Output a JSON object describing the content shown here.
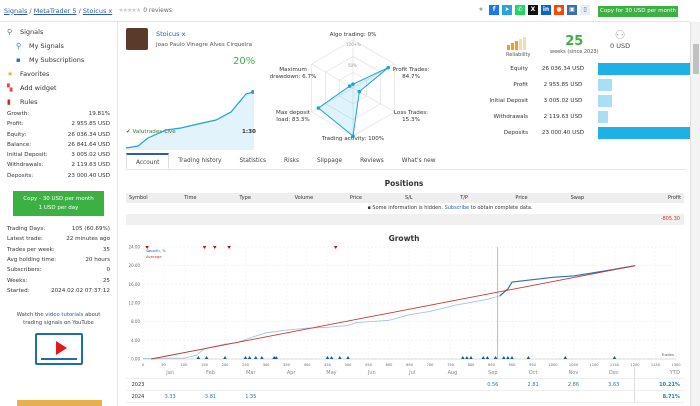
{
  "breadcrumb": [
    "Signals",
    "MetaTrader 5",
    "Stoicus x"
  ],
  "reviews": "0 reviews",
  "copy_top": "Copy for 30 USD per month",
  "share_icons": [
    "facebook",
    "telegram",
    "whatsapp",
    "x",
    "linkedin",
    "reddit",
    "vk",
    "bookmark"
  ],
  "sidebar": {
    "nav": [
      {
        "label": "Signals",
        "icon": "signals-icon"
      },
      {
        "label": "My Signals",
        "icon": "my-signals-icon"
      },
      {
        "label": "My Subscriptions",
        "icon": "subscriptions-icon"
      },
      {
        "label": "Favorites",
        "icon": "star-icon"
      },
      {
        "label": "Add widget",
        "icon": "widget-icon"
      },
      {
        "label": "Rules",
        "icon": "bookmark-icon"
      }
    ],
    "stats": [
      [
        "Growth:",
        "19.81%"
      ],
      [
        "Profit:",
        "2 955.85 USD"
      ],
      [
        "Equity:",
        "26 036.34 USD"
      ],
      [
        "Balance:",
        "26 841.64 USD"
      ],
      [
        "Initial Deposit:",
        "3 005.02 USD"
      ],
      [
        "Withdrawals:",
        "2 119.63 USD"
      ],
      [
        "Deposits:",
        "23 000.40 USD"
      ]
    ],
    "copy_line1": "Copy - 30 USD per month",
    "copy_line2": "1 USD per day",
    "stats2": [
      [
        "Trading Days:",
        "105 (60.69%)"
      ],
      [
        "Latest trade:",
        "22 minutes ago"
      ],
      [
        "Trades per week:",
        "35"
      ],
      [
        "Avg holding time:",
        "20 hours"
      ],
      [
        "Subscribers:",
        "0"
      ],
      [
        "Weeks:",
        "25"
      ],
      [
        "Started:",
        "2024.02.02 07:37:12"
      ]
    ],
    "video_pre": "Watch the ",
    "video_link": "video tutorials",
    "video_post": " about trading signals on YouTube"
  },
  "signal": {
    "name": "Stoicus x",
    "owner": "Joao Paulo Vinagre Alves Cirqueira",
    "growth": "20%",
    "broker": "Valutrades-Live",
    "leverage": "1:30"
  },
  "radar": {
    "algo": "Algo trading: 0%",
    "profit": "Profit Trades:",
    "profit_v": "84.7%",
    "loss": "Loss Trades:",
    "loss_v": "15.3%",
    "activity": "Trading activity: 100%",
    "deposit": "Max deposit",
    "deposit_v": "load: 83.3%",
    "drawdown": "Maximum",
    "drawdown_v": "drawdown: 6.7%",
    "t100": "100+%",
    "t50": "50%",
    "values": [
      0,
      84.7,
      15.3,
      100,
      83.3,
      6.7
    ]
  },
  "reliability": "Reliability",
  "weeks": {
    "value": "25",
    "label": "weeks (since 2023)"
  },
  "subscribers": "0 USD",
  "bars": [
    {
      "label": "Equity",
      "value": "26 036.34 USD",
      "frac": 0.96,
      "red": 0.03
    },
    {
      "label": "Profit",
      "value": "2 955.85 USD",
      "frac": 0.11
    },
    {
      "label": "Initial Deposit",
      "value": "3 005.02 USD",
      "frac": 0.11
    },
    {
      "label": "Withdrawals",
      "value": "2 119.63 USD",
      "frac": 0.08
    },
    {
      "label": "Deposits",
      "value": "23 000.40 USD",
      "frac": 0.86
    }
  ],
  "tabs": [
    "Account",
    "Trading history",
    "Statistics",
    "Risks",
    "Slippage",
    "Reviews",
    "What's new"
  ],
  "positions": {
    "title": "Positions",
    "columns": [
      "Symbol",
      "Time",
      "Type",
      "Volume",
      "Price",
      "S/L",
      "T/P",
      "Price",
      "Swap",
      "Profit"
    ],
    "info": "Some information is hidden. ",
    "subscribe": "Subscribe",
    "info2": " to obtain complete data.",
    "total": "-805.30"
  },
  "chart_data": {
    "type": "line",
    "title": "Growth",
    "xlabel": "Trades",
    "ylim": [
      0,
      24
    ],
    "xlim": [
      0,
      1300
    ],
    "yticks": [
      "0.00",
      "4.00",
      "8.00",
      "12.00",
      "16.00",
      "20.00",
      "24.00"
    ],
    "xticks": [
      0,
      50,
      100,
      150,
      200,
      250,
      300,
      350,
      400,
      450,
      500,
      550,
      600,
      650,
      700,
      750,
      800,
      850,
      900,
      950,
      1000,
      1050,
      1100,
      1150,
      1200,
      1250,
      1300
    ],
    "legend": [
      "Growth, %",
      "Average"
    ],
    "series": [
      {
        "name": "Growth, %",
        "x": [
          0,
          100,
          130,
          150,
          200,
          230,
          260,
          300,
          350,
          400,
          450,
          500,
          520,
          600,
          650,
          700,
          760,
          840,
          870
        ],
        "y": [
          0.1,
          0.2,
          0.8,
          2.2,
          3.2,
          3.5,
          4.5,
          5.6,
          6.2,
          6.6,
          6.8,
          7.2,
          7.8,
          8.3,
          9.5,
          10.2,
          11.5,
          12.8,
          13.5
        ]
      },
      {
        "name": "Growth (recent)",
        "x": [
          870,
          890,
          900,
          950,
          1000,
          1050,
          1100,
          1150,
          1200
        ],
        "y": [
          13.5,
          15,
          16.5,
          17,
          17.5,
          17.8,
          18.5,
          19.2,
          20
        ]
      },
      {
        "name": "Average",
        "x": [
          20,
          1200
        ],
        "y": [
          0,
          20
        ]
      }
    ],
    "months": [
      "Jan",
      "Feb",
      "Mar",
      "Apr",
      "May",
      "Jun",
      "Jul",
      "Aug",
      "Sep",
      "Oct",
      "Nov",
      "Dec",
      "YTD"
    ],
    "rows": [
      {
        "year": "2023",
        "vals": [
          "",
          "",
          "",
          "",
          "",
          "",
          "",
          "",
          "0.56",
          "2.81",
          "2.86",
          "3.63"
        ],
        "ytd": "10.21%"
      },
      {
        "year": "2024",
        "vals": [
          "3.33",
          "3.81",
          "1.35",
          "",
          "",
          "",
          "",
          "",
          "",
          "",
          "",
          ""
        ],
        "ytd": "8.71%"
      }
    ]
  },
  "colors": {
    "green": "#3cb043",
    "blue": "#1fb0e6",
    "red": "#c0392b"
  }
}
